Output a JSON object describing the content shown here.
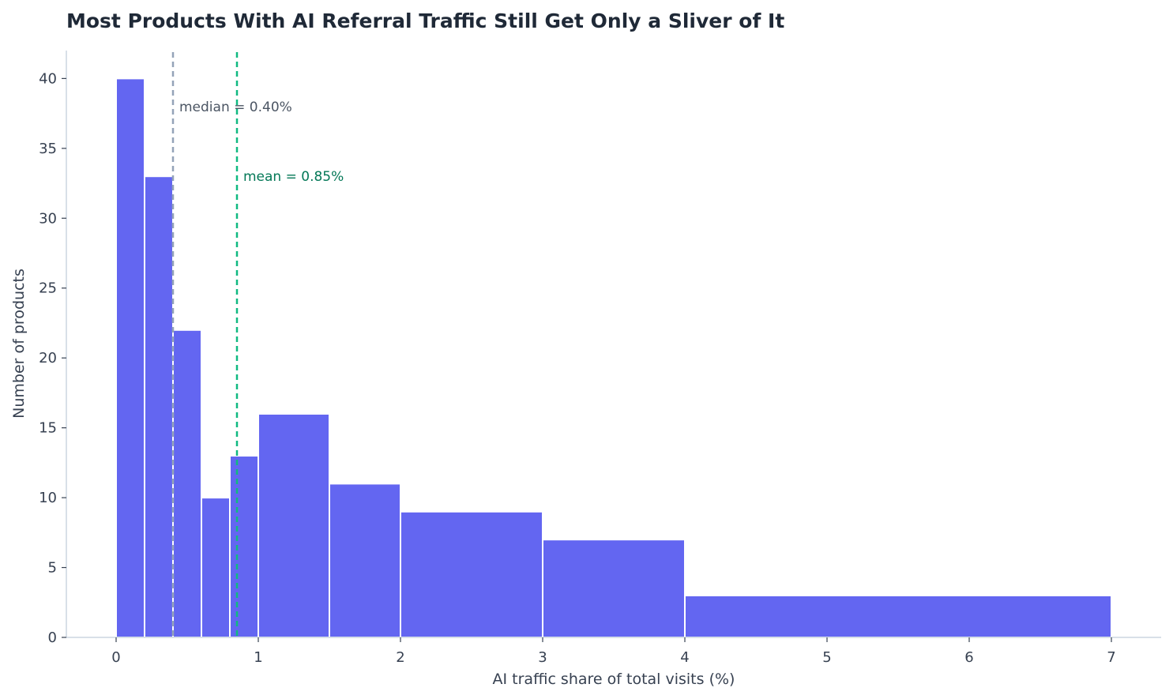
{
  "chart_data": {
    "type": "bar",
    "title": "Most Products With AI Referral Traffic Still Get Only a Sliver of It",
    "xlabel": "AI traffic share of total visits (%)",
    "ylabel": "Number of products",
    "xlim": [
      -0.35,
      7.35
    ],
    "ylim": [
      0,
      42
    ],
    "x_ticks": [
      "0",
      "1",
      "2",
      "3",
      "4",
      "5",
      "6",
      "7"
    ],
    "y_ticks": [
      "0",
      "5",
      "10",
      "15",
      "20",
      "25",
      "30",
      "35",
      "40"
    ],
    "bins": [
      {
        "x0": 0,
        "x1": 0.2,
        "count": 40
      },
      {
        "x0": 0.2,
        "x1": 0.4,
        "count": 33
      },
      {
        "x0": 0.4,
        "x1": 0.6,
        "count": 22
      },
      {
        "x0": 0.6,
        "x1": 0.8,
        "count": 10
      },
      {
        "x0": 0.8,
        "x1": 1.0,
        "count": 13
      },
      {
        "x0": 1.0,
        "x1": 1.5,
        "count": 16
      },
      {
        "x0": 1.5,
        "x1": 2.0,
        "count": 11
      },
      {
        "x0": 2.0,
        "x1": 3.0,
        "count": 9
      },
      {
        "x0": 3.0,
        "x1": 4.0,
        "count": 7
      },
      {
        "x0": 4.0,
        "x1": 7.0,
        "count": 3
      }
    ],
    "reference_lines": [
      {
        "name": "median",
        "value": 0.4,
        "label": "median = 0.40%",
        "color": "#94a3b8",
        "label_color": "#4b5563",
        "label_y": 38
      },
      {
        "name": "mean",
        "value": 0.85,
        "label": "mean = 0.85%",
        "color": "#10b981",
        "label_color": "#047857",
        "label_y": 33
      }
    ],
    "bar_color": "#6366f1",
    "grid": false,
    "legend": false
  }
}
